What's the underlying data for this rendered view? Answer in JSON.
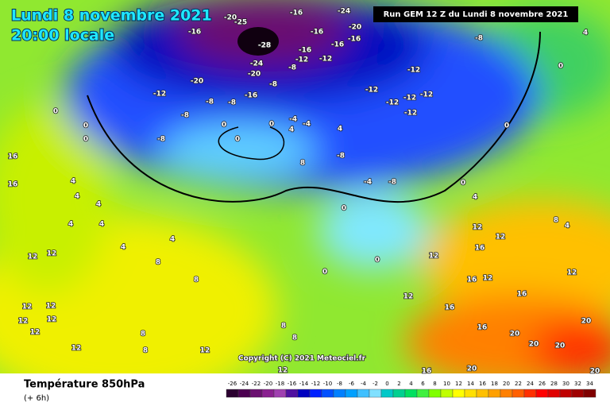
{
  "header": {
    "date": "Lundi 8 novembre 2021",
    "time": "20:00 locale",
    "run": "Run GEM 12 Z du Lundi 8 novembre 2021"
  },
  "map": {
    "labels": [
      -16,
      -20,
      -25,
      -28,
      -24,
      -20,
      -16,
      -24,
      -16,
      -16,
      -20,
      -16,
      -16,
      -12,
      -8,
      -12,
      -20,
      -12,
      -8,
      -8,
      -16,
      -8,
      -12,
      -12,
      -12,
      -12,
      -12,
      -12,
      -8,
      -8,
      -8,
      -4,
      -4,
      4,
      0,
      0,
      0,
      0,
      0,
      0,
      4,
      0,
      0,
      16,
      16,
      4,
      4,
      4,
      4,
      4,
      4,
      4,
      8,
      4,
      -8,
      -4,
      -8,
      0,
      4,
      0,
      8,
      4,
      12,
      12,
      12,
      12,
      8,
      8,
      12,
      16,
      12,
      16,
      12,
      16,
      12,
      12,
      12,
      12,
      12,
      12,
      8,
      8,
      8,
      16,
      20,
      20,
      20,
      20,
      12,
      12,
      16,
      20,
      20,
      0,
      0,
      12,
      16,
      8
    ],
    "copyright": "Copyright (C) 2021 Meteociel.fr"
  },
  "footer": {
    "title": "Température 850hPa",
    "step": "(+ 6h)"
  },
  "scale": {
    "values": [
      -26,
      -24,
      -22,
      -20,
      -18,
      -16,
      -14,
      -12,
      -10,
      -8,
      -6,
      -4,
      -2,
      0,
      2,
      4,
      6,
      8,
      10,
      12,
      14,
      16,
      18,
      20,
      22,
      24,
      26,
      28,
      30,
      32,
      34
    ],
    "colors": [
      "#2b0030",
      "#4b0050",
      "#6b1070",
      "#8a2090",
      "#a040b0",
      "#5010a0",
      "#0000c0",
      "#0020ff",
      "#0050ff",
      "#0080ff",
      "#00a0ff",
      "#40c0ff",
      "#80e0ff",
      "#00c8c8",
      "#00d090",
      "#00e060",
      "#40f040",
      "#80ff00",
      "#c0ff00",
      "#ffff00",
      "#ffe000",
      "#ffc000",
      "#ffa000",
      "#ff8000",
      "#ff6000",
      "#ff3000",
      "#ff0000",
      "#e00000",
      "#c00000",
      "#a00000",
      "#800000"
    ]
  }
}
